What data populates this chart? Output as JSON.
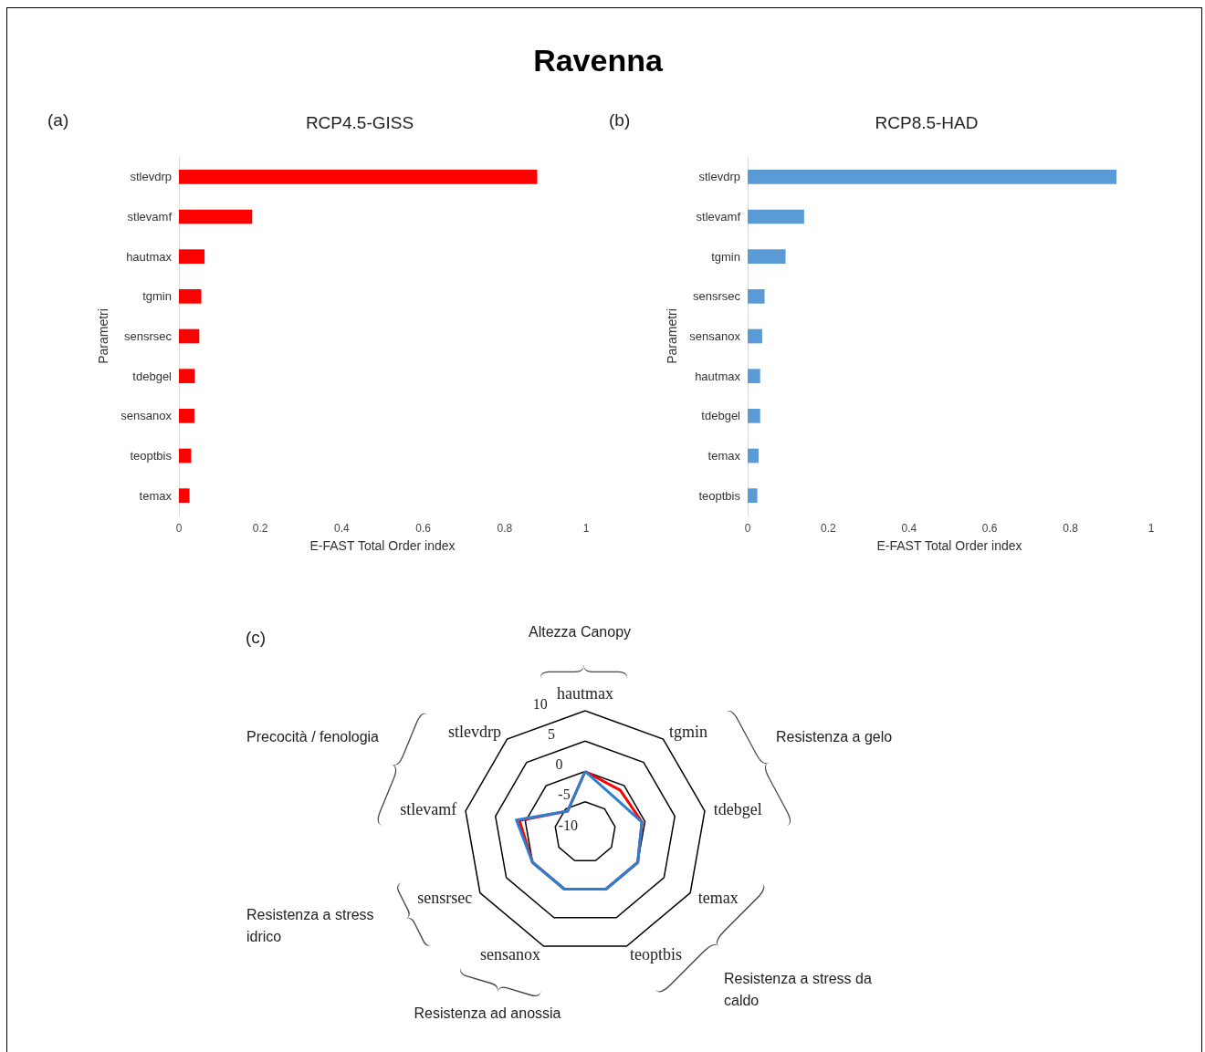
{
  "chart_data": [
    {
      "type": "bar",
      "orientation": "horizontal",
      "title": "RCP4.5-GISS",
      "xlabel": "E-FAST Total Order index",
      "ylabel": "Parametri",
      "categories": [
        "stlevdrp",
        "stlevamf",
        "hautmax",
        "tgmin",
        "sensrsec",
        "tdebgel",
        "sensanox",
        "teoptbis",
        "temax"
      ],
      "values": [
        0.88,
        0.18,
        0.063,
        0.055,
        0.05,
        0.039,
        0.038,
        0.03,
        0.026
      ],
      "color": "#ff0000",
      "xlim": [
        0,
        1
      ],
      "xticks": [
        0,
        0.2,
        0.4,
        0.6,
        0.8,
        1
      ],
      "annotations": [
        "Ravenna",
        "(a)"
      ]
    },
    {
      "type": "bar",
      "orientation": "horizontal",
      "title": "RCP8.5-HAD",
      "xlabel": "E-FAST Total Order index",
      "ylabel": "Parametri",
      "categories": [
        "stlevdrp",
        "stlevamf",
        "tgmin",
        "sensrsec",
        "sensanox",
        "hautmax",
        "tdebgel",
        "temax",
        "teoptbis"
      ],
      "values": [
        0.914,
        0.14,
        0.094,
        0.042,
        0.036,
        0.031,
        0.031,
        0.027,
        0.024
      ],
      "color": "#5b9bd5",
      "xlim": [
        0,
        1
      ],
      "xticks": [
        0,
        0.2,
        0.4,
        0.6,
        0.8,
        1
      ],
      "annotations": [
        "(b)"
      ]
    },
    {
      "type": "radar",
      "categories": [
        "hautmax",
        "tgmin",
        "tdebgel",
        "temax",
        "teoptbis",
        "sensanox",
        "sensrsec",
        "stlevamf",
        "stlevdrp"
      ],
      "series": [
        {
          "color": "#ff0000",
          "values": [
            0,
            -1,
            -0.5,
            0,
            0,
            0,
            0,
            1,
            -5.5
          ]
        },
        {
          "color": "#2a7fd0",
          "values": [
            0,
            -2.5,
            -0.5,
            0,
            0,
            0,
            0,
            1.5,
            -5.5
          ]
        }
      ],
      "ylim": [
        -10,
        10
      ],
      "yticks": [
        -10,
        -5,
        0,
        5,
        10
      ],
      "annotations": [
        "(c)",
        "Altezza Canopy",
        "Precocità / fenologia",
        "Resistenza a gelo",
        "Resistenza a stress idrico",
        "Resistenza ad anossia",
        "Resistenza a stress da caldo"
      ]
    }
  ]
}
